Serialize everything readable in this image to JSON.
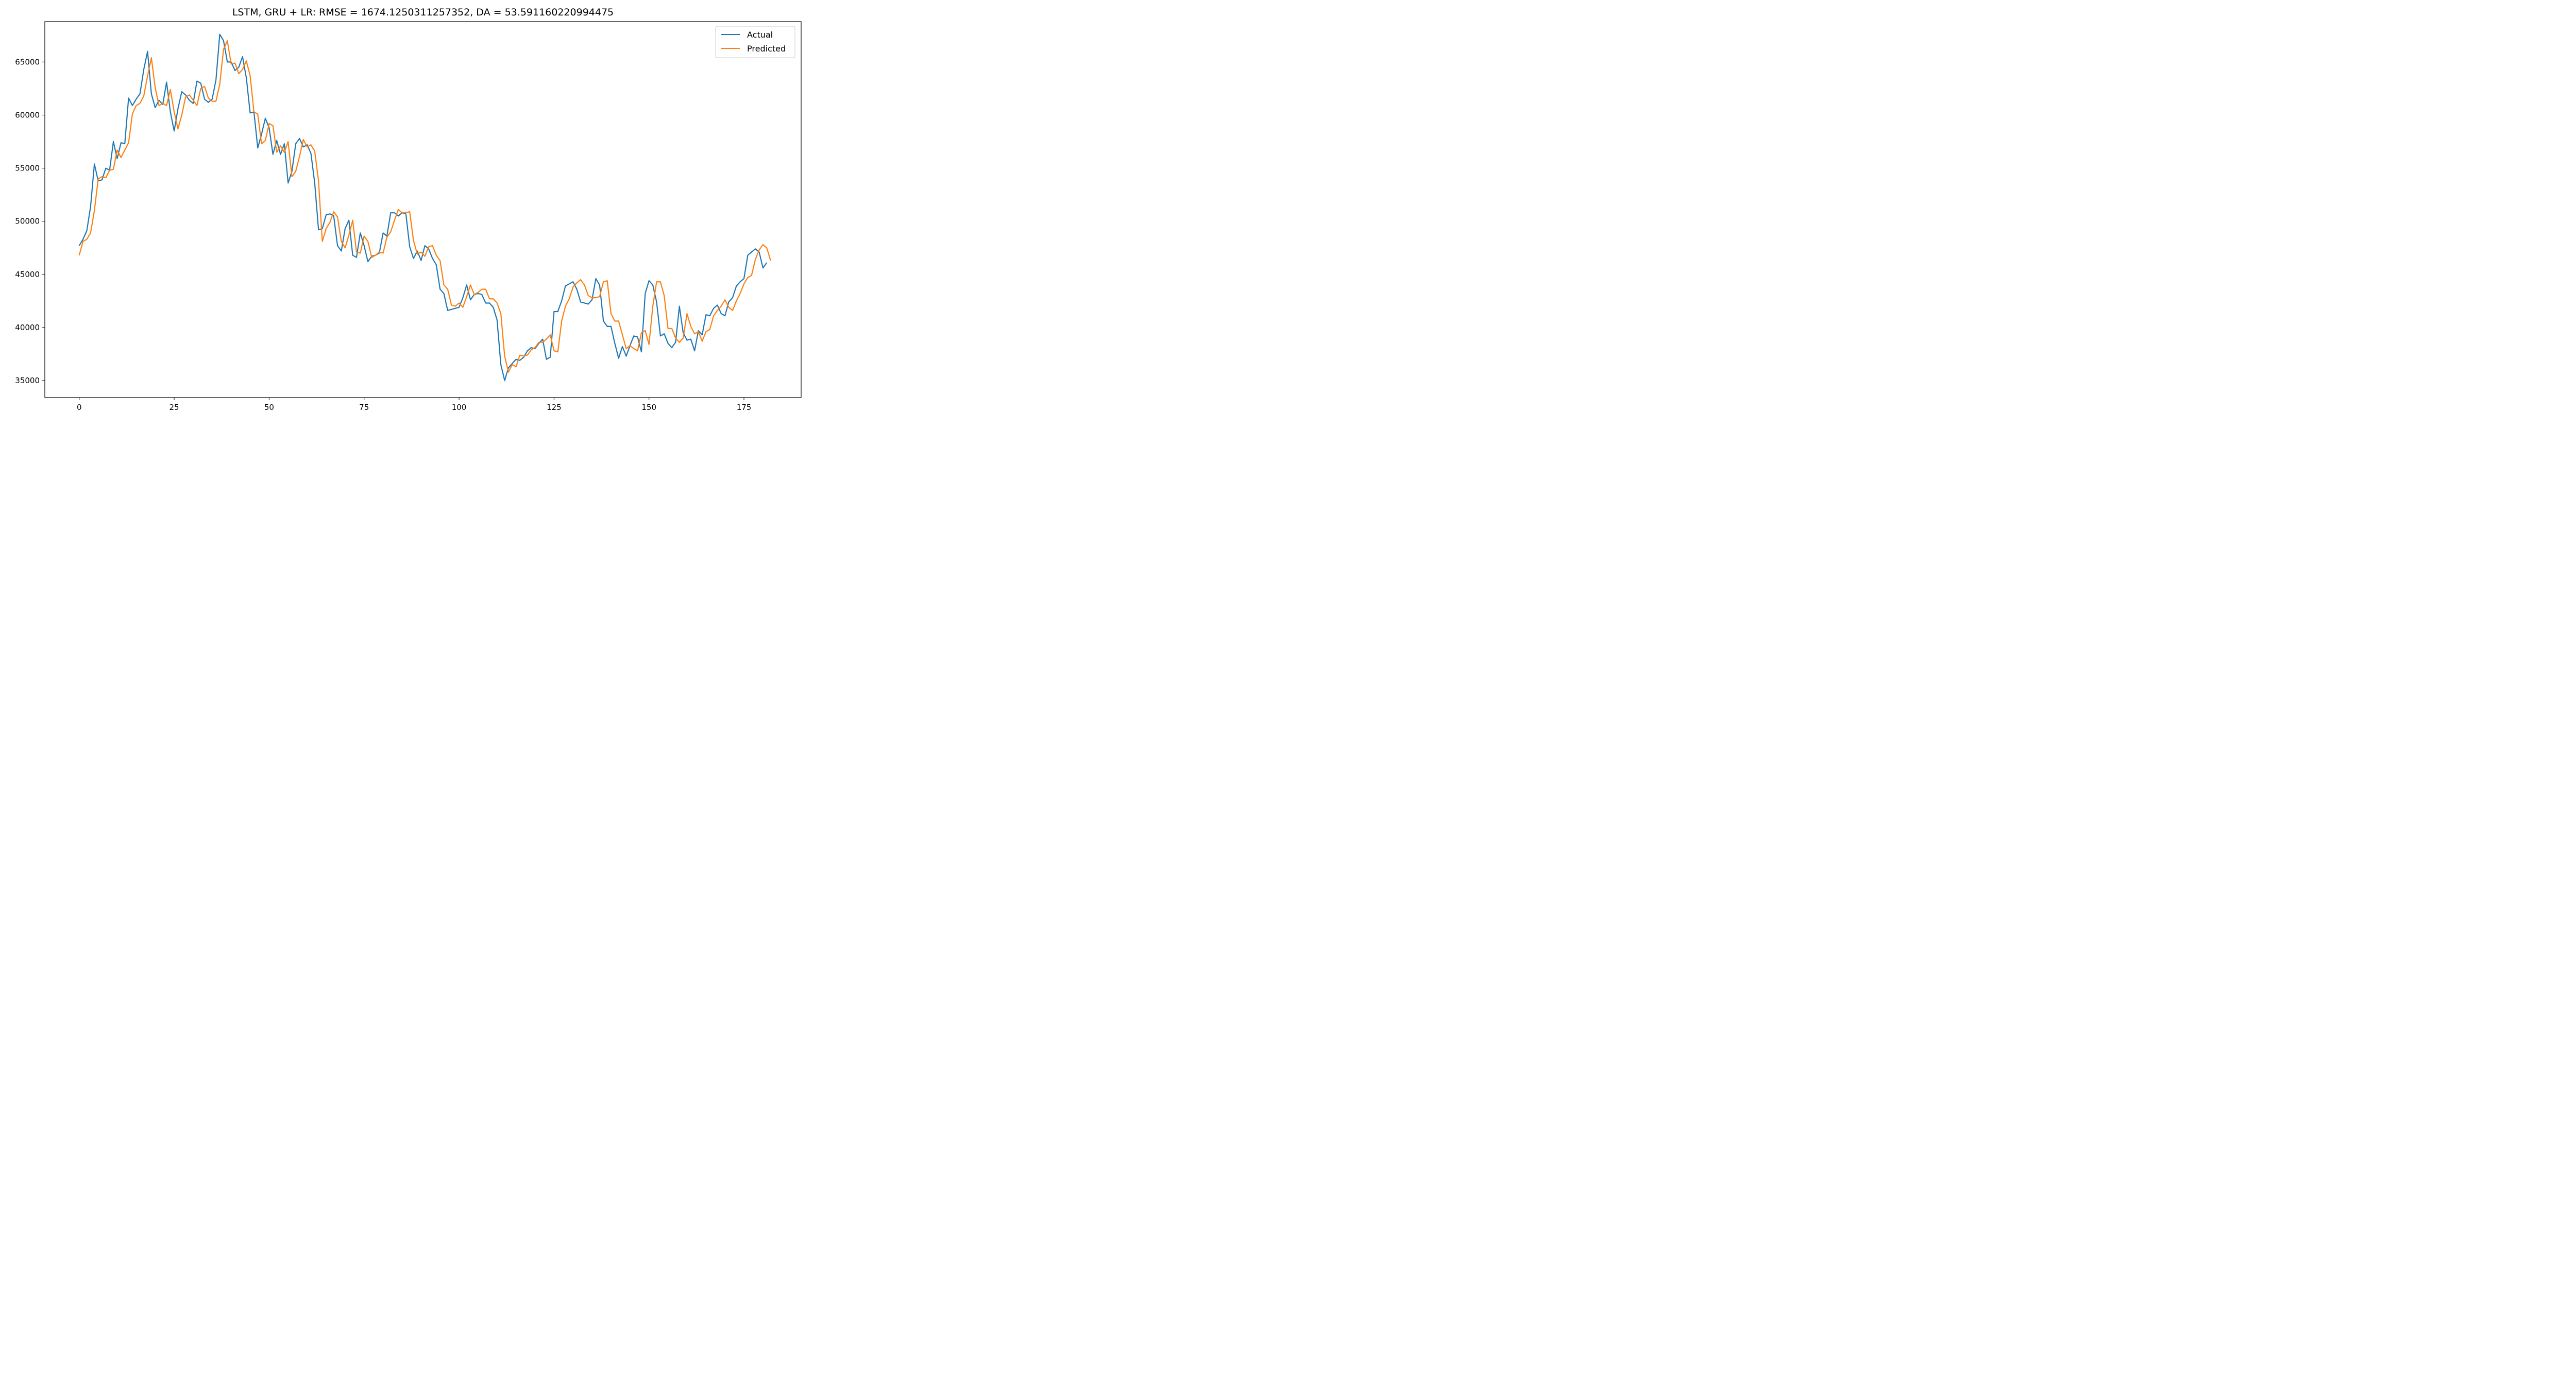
{
  "chart_data": {
    "type": "line",
    "title": "LSTM, GRU + LR: RMSE = 1674.1250311257352, DA = 53.591160220994475",
    "xlabel": "",
    "ylabel": "",
    "xlim": [
      -9.05,
      190.05
    ],
    "ylim": [
      33400,
      68800
    ],
    "xticks": [
      0,
      25,
      50,
      75,
      100,
      125,
      150,
      175
    ],
    "yticks": [
      35000,
      40000,
      45000,
      50000,
      55000,
      60000,
      65000
    ],
    "grid": false,
    "legend_position": "top-right",
    "series": [
      {
        "name": "Actual",
        "color": "#1f77b4",
        "values": [
          47700,
          48300,
          49100,
          51400,
          55400,
          53800,
          53900,
          55000,
          54800,
          57500,
          55900,
          57400,
          57300,
          61600,
          60900,
          61500,
          62000,
          64300,
          66000,
          62000,
          60700,
          61400,
          61000,
          63100,
          60300,
          58500,
          60600,
          62200,
          61900,
          61400,
          61100,
          63200,
          63000,
          61500,
          61200,
          61500,
          63300,
          67600,
          67000,
          65000,
          65000,
          64200,
          64500,
          65500,
          63500,
          60200,
          60300,
          56900,
          58200,
          59700,
          58800,
          56300,
          57600,
          56300,
          57300,
          53600,
          54700,
          57300,
          57800,
          57000,
          57200,
          56400,
          53600,
          49200,
          49300,
          50600,
          50700,
          50500,
          47700,
          47200,
          49300,
          50100,
          46800,
          46600,
          48900,
          47700,
          46200,
          46700,
          46800,
          47000,
          48900,
          48600,
          50800,
          50800,
          50500,
          50800,
          50700,
          47600,
          46500,
          47200,
          46300,
          47700,
          47400,
          46500,
          45900,
          43600,
          43200,
          41600,
          41700,
          41800,
          41900,
          42800,
          44000,
          42600,
          43100,
          43200,
          43100,
          42300,
          42300,
          41900,
          40700,
          36500,
          35000,
          36200,
          36600,
          37000,
          36900,
          37200,
          37800,
          38100,
          38000,
          38500,
          38900,
          37000,
          37200,
          41500,
          41500,
          42500,
          43900,
          44100,
          44300,
          43600,
          42400,
          42300,
          42200,
          42600,
          44600,
          44000,
          40600,
          40100,
          40100,
          38500,
          37100,
          38200,
          37300,
          38300,
          39200,
          39100,
          37700,
          43200,
          44400,
          44000,
          42400,
          39200,
          39400,
          38500,
          38100,
          38600,
          42000,
          39500,
          38800,
          38900,
          37800,
          39700,
          39300,
          41200,
          41100,
          41800,
          42100,
          41300,
          41100,
          42400,
          42800,
          43900,
          44300,
          44600,
          46800,
          47100,
          47400,
          47100,
          45600,
          46100
        ]
      },
      {
        "name": "Predicted",
        "color": "#ff7f0e",
        "values": [
          46800,
          48100,
          48300,
          48900,
          51000,
          54000,
          54200,
          54100,
          54800,
          54900,
          56700,
          56000,
          56700,
          57400,
          60100,
          60900,
          61100,
          61800,
          63700,
          65400,
          62600,
          60900,
          61100,
          60900,
          62400,
          60300,
          58700,
          60000,
          61700,
          61900,
          61400,
          60900,
          62500,
          62700,
          61600,
          61300,
          61300,
          62900,
          66200,
          67000,
          64800,
          64900,
          63900,
          64300,
          65100,
          63700,
          60300,
          60100,
          57300,
          57600,
          59200,
          59000,
          56500,
          57100,
          56500,
          57500,
          54200,
          54700,
          56100,
          57700,
          57000,
          57200,
          56600,
          53800,
          48100,
          49300,
          49900,
          50900,
          50400,
          48100,
          47500,
          48700,
          50100,
          47100,
          47000,
          48600,
          48100,
          46600,
          46800,
          47100,
          47000,
          48500,
          49000,
          50100,
          51100,
          50800,
          50800,
          50900,
          48200,
          46900,
          47100,
          46700,
          47600,
          47700,
          46800,
          46300,
          44000,
          43600,
          42100,
          42000,
          42300,
          41900,
          42900,
          44000,
          43100,
          43300,
          43600,
          43600,
          42700,
          42700,
          42300,
          41300,
          37300,
          35800,
          36500,
          36300,
          37400,
          37300,
          37400,
          37900,
          38100,
          38600,
          38600,
          38900,
          39300,
          37800,
          37700,
          40600,
          42000,
          42700,
          43800,
          44200,
          44500,
          44000,
          43000,
          42800,
          42800,
          42900,
          44300,
          44400,
          41300,
          40600,
          40600,
          39300,
          38000,
          38300,
          38000,
          37800,
          39500,
          39700,
          38400,
          42000,
          44300,
          44300,
          43000,
          39900,
          39900,
          39000,
          38600,
          39000,
          41300,
          40100,
          39400,
          39600,
          38700,
          39600,
          39800,
          41100,
          41600,
          42000,
          42600,
          41900,
          41600,
          42500,
          43200,
          44100,
          44700,
          44900,
          46400,
          47300,
          47800,
          47500,
          46300
        ]
      }
    ]
  }
}
